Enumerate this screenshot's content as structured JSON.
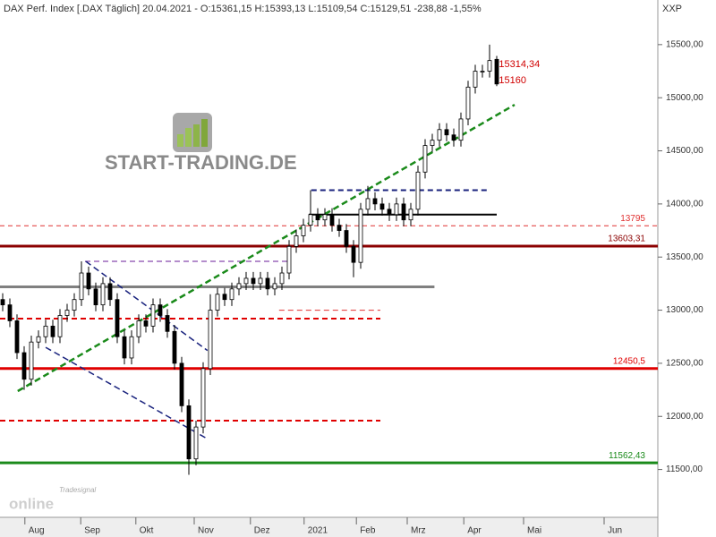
{
  "chart_data": {
    "type": "candlestick",
    "title": "DAX Perf. Index [.DAX Täglich] 20.04.2021 - O:15361,15 H:15393,13 L:15109,54 C:15129,51 -238,88 -1,55%",
    "axis_label": "XXP",
    "watermark": "START-TRADING.DE",
    "branding": [
      "Tradesignal",
      "online"
    ],
    "open": [
      13100,
      13050,
      12900,
      12600,
      12350,
      12700,
      12750,
      12850,
      12750,
      12950,
      13000,
      13100,
      13350,
      13200,
      13050,
      13250,
      13100,
      12750,
      12550,
      12750,
      12900,
      12850,
      13050,
      12950,
      12800,
      12500,
      12100,
      11600,
      11900,
      12450,
      13000,
      13150,
      13100,
      13200,
      13250,
      13300,
      13250,
      13300,
      13200,
      13250,
      13350,
      13600,
      13700,
      13800,
      13900,
      13850,
      13900,
      13800,
      13750,
      13600,
      13450,
      13950,
      14050,
      14000,
      13950,
      13900,
      14000,
      13850,
      13950,
      14300,
      14550,
      14600,
      14700,
      14650,
      14600,
      14800,
      15100,
      15250,
      15250,
      15361.15
    ],
    "high": [
      13160,
      13110,
      12960,
      12660,
      12760,
      12810,
      12910,
      12910,
      13010,
      13060,
      13160,
      13460,
      13410,
      13260,
      13310,
      13310,
      13160,
      12810,
      12810,
      12960,
      12960,
      13110,
      13110,
      13010,
      12860,
      12560,
      12160,
      11960,
      12510,
      13150,
      13210,
      13210,
      13260,
      13310,
      13360,
      13360,
      13360,
      13360,
      13310,
      13410,
      13660,
      13760,
      13860,
      14130,
      13960,
      13960,
      13960,
      13860,
      13810,
      13660,
      14010,
      14170,
      14110,
      14060,
      14010,
      14060,
      14060,
      14010,
      14360,
      14610,
      14660,
      14760,
      14760,
      14710,
      14860,
      15160,
      15310,
      15310,
      15500,
      15393.13
    ],
    "low": [
      12990,
      12840,
      12540,
      12250,
      12290,
      12640,
      12690,
      12690,
      12690,
      12890,
      12940,
      13040,
      13140,
      12990,
      12990,
      13040,
      12690,
      12490,
      12490,
      12690,
      12790,
      12790,
      12890,
      12740,
      12440,
      12040,
      11450,
      11540,
      11840,
      12390,
      12940,
      13040,
      13040,
      13140,
      13190,
      13190,
      13190,
      13140,
      13140,
      13190,
      13290,
      13540,
      13640,
      13740,
      13790,
      13790,
      13740,
      13690,
      13540,
      13310,
      13390,
      13890,
      13940,
      13890,
      13840,
      13840,
      13790,
      13790,
      13890,
      14240,
      14490,
      14540,
      14590,
      14540,
      14540,
      14740,
      15040,
      15190,
      15190,
      15109.54
    ],
    "close": [
      13050,
      12900,
      12600,
      12350,
      12700,
      12750,
      12850,
      12750,
      12950,
      13000,
      13100,
      13350,
      13200,
      13050,
      13250,
      13100,
      12750,
      12550,
      12750,
      12900,
      12850,
      13050,
      12950,
      12800,
      12500,
      12100,
      11600,
      11900,
      12450,
      13000,
      13150,
      13100,
      13200,
      13250,
      13300,
      13250,
      13300,
      13200,
      13250,
      13350,
      13600,
      13700,
      13800,
      13900,
      13850,
      13900,
      13800,
      13750,
      13600,
      13450,
      13950,
      14050,
      14000,
      13950,
      13900,
      14000,
      13850,
      13950,
      14300,
      14550,
      14600,
      14700,
      14650,
      14600,
      14800,
      15100,
      15250,
      15250,
      15350,
      15129.51
    ],
    "up_color": "#ffffff",
    "down_color": "#000000",
    "xlim": [
      -0.375,
      91.5
    ],
    "xticks": [
      {
        "value": 3.1,
        "label": "Aug"
      },
      {
        "value": 10.9,
        "label": "Sep"
      },
      {
        "value": 18.6,
        "label": "Okt"
      },
      {
        "value": 26.75,
        "label": "Nov"
      },
      {
        "value": 34.6,
        "label": "Dez"
      },
      {
        "value": 42.1,
        "label": "2021"
      },
      {
        "value": 49.4,
        "label": "Feb"
      },
      {
        "value": 56.5,
        "label": "Mrz"
      },
      {
        "value": 64.4,
        "label": "Apr"
      },
      {
        "value": 72.75,
        "label": "Mai"
      },
      {
        "value": 84,
        "label": "Jun"
      }
    ],
    "ylim": [
      11050,
      15920
    ],
    "yticks": [
      {
        "value": 11500,
        "label": "11500,00"
      },
      {
        "value": 12000,
        "label": "12000,00"
      },
      {
        "value": 12500,
        "label": "12500,00"
      },
      {
        "value": 13000,
        "label": "13000,00"
      },
      {
        "value": 13500,
        "label": "13500,00"
      },
      {
        "value": 14000,
        "label": "14000,00"
      },
      {
        "value": 14500,
        "label": "14500,00"
      },
      {
        "value": 15000,
        "label": "15000,00"
      },
      {
        "value": 15500,
        "label": "15500,00"
      }
    ],
    "levels": [
      {
        "value": 13795,
        "color": "#e03030",
        "width": 1,
        "dashed": true
      },
      {
        "value": 13603.31,
        "label": "13603,31",
        "color": "#8b0000",
        "width": 3,
        "dashed": false
      },
      {
        "value": 12450.5,
        "label": "12450,5",
        "color": "#e00000",
        "width": 3,
        "dashed": false
      },
      {
        "value": 11562.43,
        "label": "11562,43",
        "color": "#1a8a1a",
        "width": 3,
        "dashed": false
      }
    ],
    "segments": [
      {
        "value": 13220,
        "from": -0.375,
        "to": 60.3,
        "color": "#808080",
        "width": 3,
        "dashed": false
      },
      {
        "value": 13900,
        "from": 42.75,
        "to": 69,
        "color": "#000000",
        "width": 2,
        "dashed": false
      },
      {
        "value": 14130,
        "from": 43.1,
        "to": 67.75,
        "color": "#1a237e",
        "width": 2,
        "dashed": true
      },
      {
        "value": 12920,
        "from": -0.375,
        "to": 52.75,
        "color": "#e00000",
        "width": 2,
        "dashed": true
      },
      {
        "value": 11960,
        "from": -0.375,
        "to": 52.75,
        "color": "#e00000",
        "width": 2,
        "dashed": true
      },
      {
        "value": 13000,
        "from": 38.6,
        "to": 52.75,
        "color": "#e03030",
        "width": 1,
        "dashed": true
      },
      {
        "value": 13460,
        "from": 11.5,
        "to": 40,
        "color": "#6a1b9a",
        "width": 1,
        "dashed": true
      }
    ],
    "trendlines": [
      {
        "x": [
          2.1,
          71.5
        ],
        "y": [
          12238,
          14934
        ],
        "color": "#1a8a1a",
        "width": 2.5
      },
      {
        "x": [
          11.6,
          28.6
        ],
        "y": [
          13460,
          12620
        ],
        "color": "#1a237e",
        "width": 1.5
      },
      {
        "x": [
          6,
          28.3
        ],
        "y": [
          12650,
          11800
        ],
        "color": "#1a237e",
        "width": 1.5
      }
    ],
    "annotations": [
      {
        "value": 15314.34,
        "label": "15314,34",
        "x": 69.3,
        "color": "#d00000"
      },
      {
        "value": 15160,
        "x": 69.3,
        "color": "#d00000"
      }
    ]
  }
}
